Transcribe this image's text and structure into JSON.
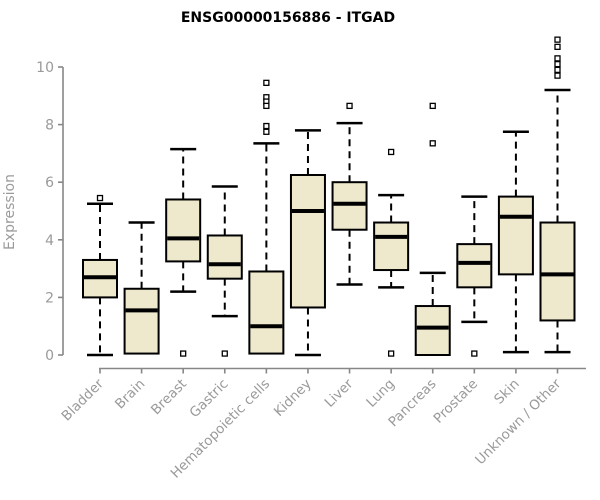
{
  "title": "ENSG00000156886 - ITGAD",
  "colors": {
    "background": "#FFFFFF",
    "title": "#000000",
    "axis": "#878787",
    "tick_labels": "#9A9A9A",
    "box_fill": "#EEE8CD",
    "box_stroke": "#000000",
    "median": "#000000",
    "whisker": "#000000",
    "outlier_fill": "#FFFFFF"
  },
  "chart_data": {
    "type": "boxplot",
    "title": "ENSG00000156886 - ITGAD",
    "xlabel": "",
    "ylabel": "Expression",
    "ylim": [
      0,
      10
    ],
    "yticks": [
      0,
      2,
      4,
      6,
      8,
      10
    ],
    "grid": false,
    "legend": false,
    "categories": [
      "Bladder",
      "Brain",
      "Breast",
      "Gastric",
      "Hematopoietic cells",
      "Kidney",
      "Liver",
      "Lung",
      "Pancreas",
      "Prostate",
      "Skin",
      "Unknown / Other"
    ],
    "series": [
      {
        "category": "Bladder",
        "whisker_low": 0.0,
        "q1": 2.0,
        "median": 2.7,
        "q3": 3.3,
        "whisker_high": 5.25,
        "outliers": [
          5.45
        ]
      },
      {
        "category": "Brain",
        "whisker_low": 0.05,
        "q1": 0.05,
        "median": 1.55,
        "q3": 2.3,
        "whisker_high": 4.6,
        "outliers": []
      },
      {
        "category": "Breast",
        "whisker_low": 2.2,
        "q1": 3.25,
        "median": 4.05,
        "q3": 5.4,
        "whisker_high": 7.15,
        "outliers": [
          0.05
        ]
      },
      {
        "category": "Gastric",
        "whisker_low": 1.35,
        "q1": 2.65,
        "median": 3.15,
        "q3": 4.15,
        "whisker_high": 5.85,
        "outliers": [
          0.05
        ]
      },
      {
        "category": "Hematopoietic cells",
        "whisker_low": 0.05,
        "q1": 0.05,
        "median": 1.0,
        "q3": 2.9,
        "whisker_high": 7.35,
        "outliers": [
          9.45,
          8.95,
          8.8,
          8.65,
          7.95,
          7.75
        ]
      },
      {
        "category": "Kidney",
        "whisker_low": 0.0,
        "q1": 1.65,
        "median": 5.0,
        "q3": 6.25,
        "whisker_high": 7.8,
        "outliers": []
      },
      {
        "category": "Liver",
        "whisker_low": 2.45,
        "q1": 4.35,
        "median": 5.25,
        "q3": 6.0,
        "whisker_high": 8.05,
        "outliers": [
          8.65
        ]
      },
      {
        "category": "Lung",
        "whisker_low": 2.35,
        "q1": 2.95,
        "median": 4.1,
        "q3": 4.6,
        "whisker_high": 5.55,
        "outliers": [
          7.05,
          0.05
        ]
      },
      {
        "category": "Pancreas",
        "whisker_low": 0.0,
        "q1": 0.0,
        "median": 0.95,
        "q3": 1.7,
        "whisker_high": 2.85,
        "outliers": [
          8.65,
          7.35
        ]
      },
      {
        "category": "Prostate",
        "whisker_low": 1.15,
        "q1": 2.35,
        "median": 3.2,
        "q3": 3.85,
        "whisker_high": 5.5,
        "outliers": [
          0.05
        ]
      },
      {
        "category": "Skin",
        "whisker_low": 0.1,
        "q1": 2.8,
        "median": 4.8,
        "q3": 5.5,
        "whisker_high": 7.75,
        "outliers": []
      },
      {
        "category": "Unknown / Other",
        "whisker_low": 0.1,
        "q1": 1.2,
        "median": 2.8,
        "q3": 4.6,
        "whisker_high": 9.2,
        "outliers": [
          10.95,
          10.7,
          10.3,
          10.1,
          9.9,
          9.7
        ]
      }
    ]
  }
}
